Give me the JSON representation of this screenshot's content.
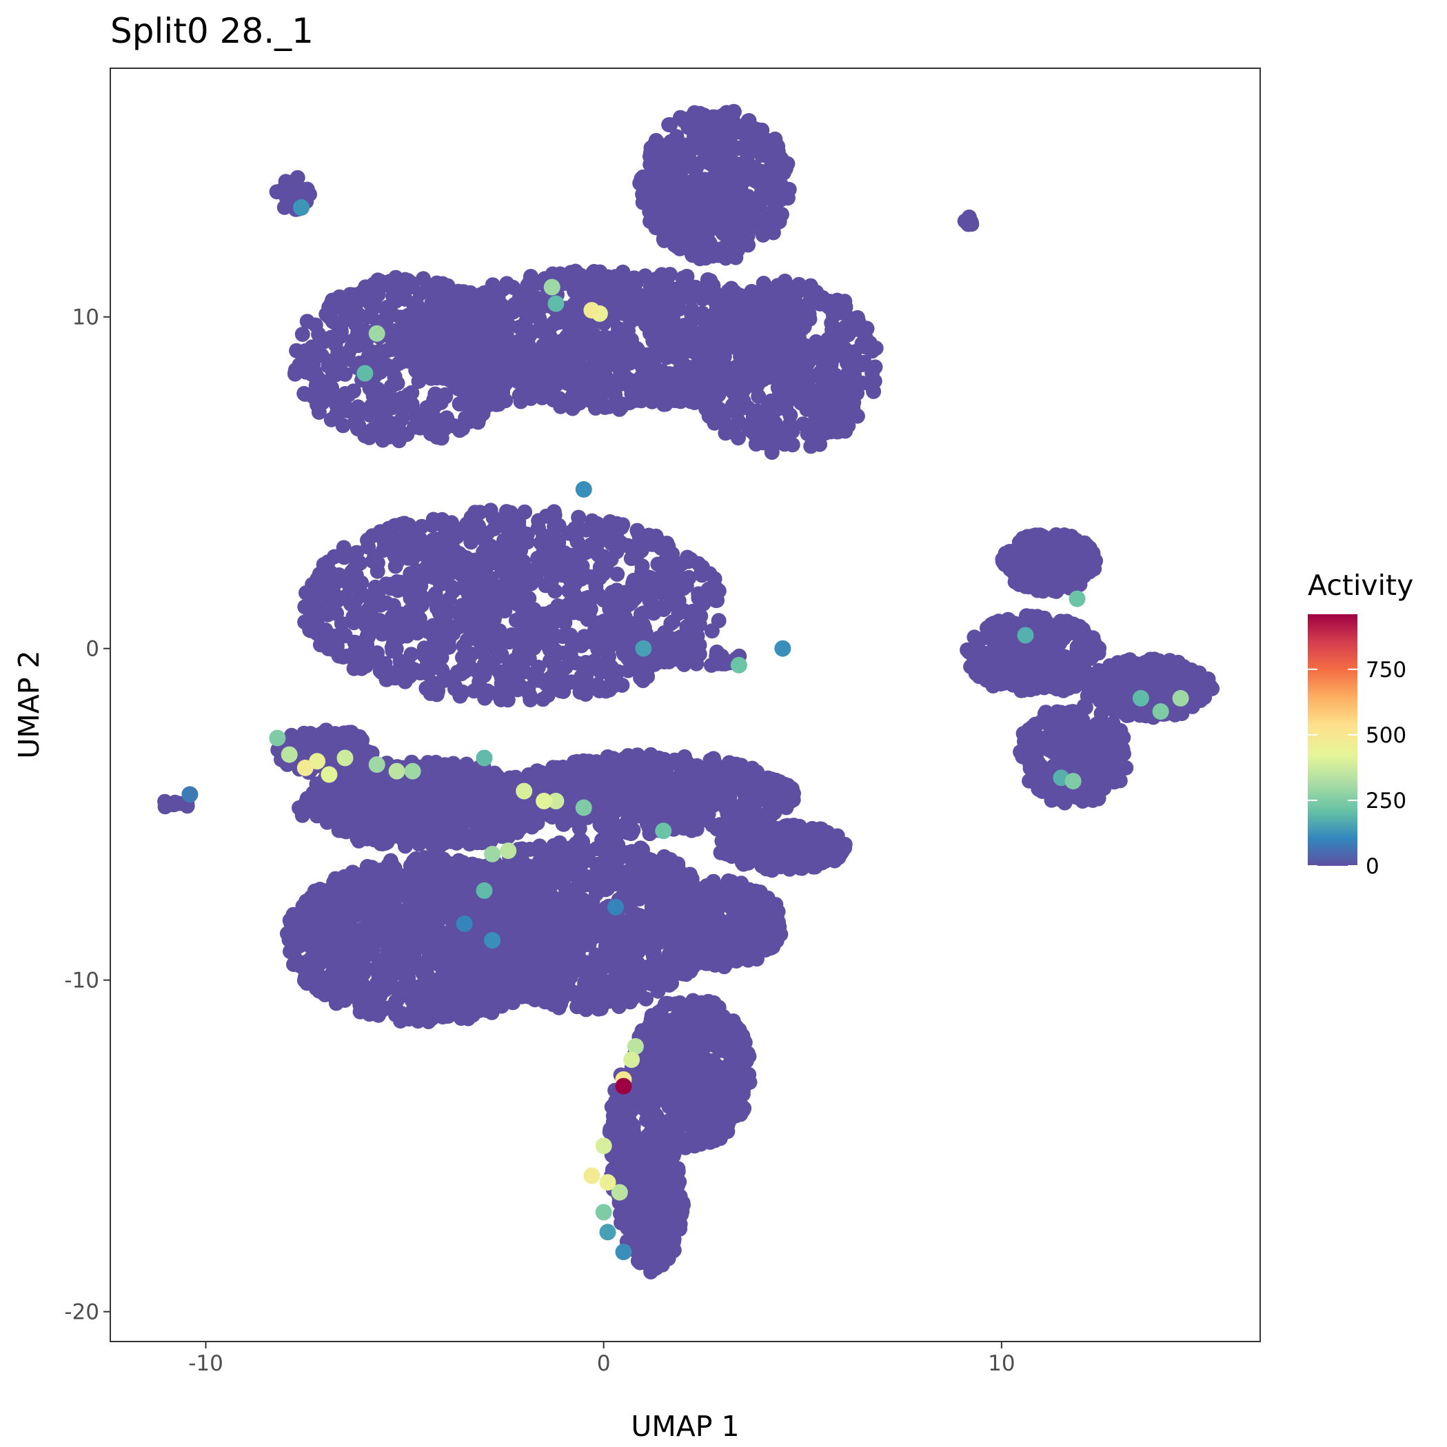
{
  "chart_data": {
    "type": "scatter",
    "title": "Split0 28._1",
    "xlabel": "UMAP 1",
    "ylabel": "UMAP 2",
    "xlim": [
      -12.4,
      16.5
    ],
    "ylim": [
      -20.9,
      17.5
    ],
    "x_ticks": [
      -10,
      0,
      10
    ],
    "x_tick_labels": [
      "-10",
      "0",
      "10"
    ],
    "y_ticks": [
      -20,
      -10,
      0,
      10
    ],
    "y_tick_labels": [
      "-20",
      "-10",
      "0",
      "10"
    ],
    "grid": false,
    "legend": {
      "title": "Activity",
      "placement": "right",
      "range": [
        0,
        960
      ],
      "breaks": [
        0,
        250,
        500,
        750
      ],
      "break_labels": [
        "0",
        "250",
        "500",
        "750"
      ]
    },
    "colors": {
      "low": "#5E4FA2",
      "scale": [
        "#5E4FA2",
        "#3288BD",
        "#66C2A5",
        "#ABDDA4",
        "#E6F598",
        "#FEE08B",
        "#FDAE61",
        "#F46D43",
        "#D53E4F",
        "#9E0142"
      ]
    },
    "clusters": [
      {
        "cx": 2.8,
        "cy": 14.0,
        "rx": 1.9,
        "ry": 2.3,
        "n": 500
      },
      {
        "cx": 0.0,
        "cy": 9.3,
        "rx": 5.3,
        "ry": 2.1,
        "n": 1000
      },
      {
        "cx": -5.0,
        "cy": 8.7,
        "rx": 2.8,
        "ry": 2.5,
        "n": 500
      },
      {
        "cx": 4.5,
        "cy": 8.5,
        "rx": 2.4,
        "ry": 2.6,
        "n": 450
      },
      {
        "cx": -2.3,
        "cy": 1.3,
        "rx": 5.3,
        "ry": 2.9,
        "n": 1000
      },
      {
        "cx": -4.5,
        "cy": -4.7,
        "rx": 3.2,
        "ry": 1.3,
        "n": 500
      },
      {
        "cx": 1.2,
        "cy": -4.4,
        "rx": 3.6,
        "ry": 1.2,
        "n": 500
      },
      {
        "cx": -4.5,
        "cy": -8.8,
        "rx": 3.5,
        "ry": 2.5,
        "n": 1000
      },
      {
        "cx": -0.5,
        "cy": -8.3,
        "rx": 3.3,
        "ry": 2.6,
        "n": 900
      },
      {
        "cx": 3.0,
        "cy": -8.3,
        "rx": 1.5,
        "ry": 1.3,
        "n": 350
      },
      {
        "cx": 4.5,
        "cy": -6.0,
        "rx": 1.6,
        "ry": 0.7,
        "n": 250
      },
      {
        "cx": 2.2,
        "cy": -12.8,
        "rx": 1.5,
        "ry": 2.3,
        "n": 500
      },
      {
        "cx": 1.2,
        "cy": -16.7,
        "rx": 0.8,
        "ry": 2.1,
        "n": 300
      },
      {
        "cx": 0.5,
        "cy": -15.0,
        "rx": 0.35,
        "ry": 2.2,
        "n": 150
      },
      {
        "cx": -7.0,
        "cy": -3.1,
        "rx": 1.2,
        "ry": 0.7,
        "n": 160
      },
      {
        "cx": 11.2,
        "cy": 2.6,
        "rx": 1.2,
        "ry": 0.9,
        "n": 200
      },
      {
        "cx": 10.8,
        "cy": -0.2,
        "rx": 1.7,
        "ry": 1.2,
        "n": 250
      },
      {
        "cx": 11.8,
        "cy": -3.2,
        "rx": 1.4,
        "ry": 1.5,
        "n": 280
      },
      {
        "cx": 13.7,
        "cy": -1.2,
        "rx": 1.6,
        "ry": 0.9,
        "n": 250
      },
      {
        "cx": 2.0,
        "cy": -0.2,
        "rx": 1.6,
        "ry": 0.35,
        "n": 60
      },
      {
        "cx": -7.8,
        "cy": 13.7,
        "rx": 0.45,
        "ry": 0.55,
        "n": 25
      },
      {
        "cx": 9.2,
        "cy": 12.9,
        "rx": 0.12,
        "ry": 0.12,
        "n": 6
      },
      {
        "cx": -10.8,
        "cy": -4.7,
        "rx": 0.4,
        "ry": 0.18,
        "n": 8
      }
    ],
    "highlights": [
      {
        "x": -7.5,
        "y": -3.6,
        "v": 480
      },
      {
        "x": -7.2,
        "y": -3.4,
        "v": 450
      },
      {
        "x": -6.9,
        "y": -3.8,
        "v": 420
      },
      {
        "x": -7.9,
        "y": -3.2,
        "v": 350
      },
      {
        "x": -6.5,
        "y": -3.3,
        "v": 380
      },
      {
        "x": -8.2,
        "y": -2.7,
        "v": 250
      },
      {
        "x": -5.7,
        "y": -3.5,
        "v": 300
      },
      {
        "x": -5.2,
        "y": -3.7,
        "v": 350
      },
      {
        "x": -4.8,
        "y": -3.7,
        "v": 300
      },
      {
        "x": -3.0,
        "y": -3.3,
        "v": 200
      },
      {
        "x": -2.0,
        "y": -4.3,
        "v": 400
      },
      {
        "x": -1.5,
        "y": -4.6,
        "v": 420
      },
      {
        "x": -1.2,
        "y": -4.6,
        "v": 380
      },
      {
        "x": -0.5,
        "y": -4.8,
        "v": 250
      },
      {
        "x": -2.4,
        "y": -6.1,
        "v": 350
      },
      {
        "x": -2.8,
        "y": -6.2,
        "v": 300
      },
      {
        "x": -3.0,
        "y": -7.3,
        "v": 200
      },
      {
        "x": 1.5,
        "y": -5.5,
        "v": 220
      },
      {
        "x": -0.3,
        "y": 10.2,
        "v": 480
      },
      {
        "x": -0.1,
        "y": 10.1,
        "v": 450
      },
      {
        "x": -1.3,
        "y": 10.9,
        "v": 300
      },
      {
        "x": -1.2,
        "y": 10.4,
        "v": 200
      },
      {
        "x": -5.7,
        "y": 9.5,
        "v": 300
      },
      {
        "x": -6.0,
        "y": 8.3,
        "v": 200
      },
      {
        "x": 0.5,
        "y": -13.0,
        "v": 500
      },
      {
        "x": 0.7,
        "y": -12.4,
        "v": 400
      },
      {
        "x": 0.8,
        "y": -12.0,
        "v": 350
      },
      {
        "x": 0.5,
        "y": -13.2,
        "v": 960
      },
      {
        "x": 0.0,
        "y": -15.0,
        "v": 400
      },
      {
        "x": -0.3,
        "y": -15.9,
        "v": 480
      },
      {
        "x": 0.1,
        "y": -16.1,
        "v": 450
      },
      {
        "x": 0.4,
        "y": -16.4,
        "v": 350
      },
      {
        "x": 0.0,
        "y": -17.0,
        "v": 250
      },
      {
        "x": 0.1,
        "y": -17.6,
        "v": 150
      },
      {
        "x": 0.5,
        "y": -18.2,
        "v": 120
      },
      {
        "x": 3.4,
        "y": -0.5,
        "v": 220
      },
      {
        "x": 11.9,
        "y": 1.5,
        "v": 220
      },
      {
        "x": 10.6,
        "y": 0.4,
        "v": 180
      },
      {
        "x": 11.8,
        "y": -4.0,
        "v": 250
      },
      {
        "x": 11.5,
        "y": -3.9,
        "v": 180
      },
      {
        "x": 14.5,
        "y": -1.5,
        "v": 300
      },
      {
        "x": 14.0,
        "y": -1.9,
        "v": 250
      },
      {
        "x": 13.5,
        "y": -1.5,
        "v": 200
      },
      {
        "x": -7.6,
        "y": 13.3,
        "v": 130
      },
      {
        "x": -10.4,
        "y": -4.4,
        "v": 80
      },
      {
        "x": -0.5,
        "y": 4.8,
        "v": 120
      },
      {
        "x": 1.0,
        "y": 0.0,
        "v": 150
      },
      {
        "x": 4.5,
        "y": 0.0,
        "v": 120
      },
      {
        "x": -3.5,
        "y": -8.3,
        "v": 100
      },
      {
        "x": -2.8,
        "y": -8.8,
        "v": 120
      },
      {
        "x": 0.3,
        "y": -7.8,
        "v": 100
      }
    ]
  }
}
